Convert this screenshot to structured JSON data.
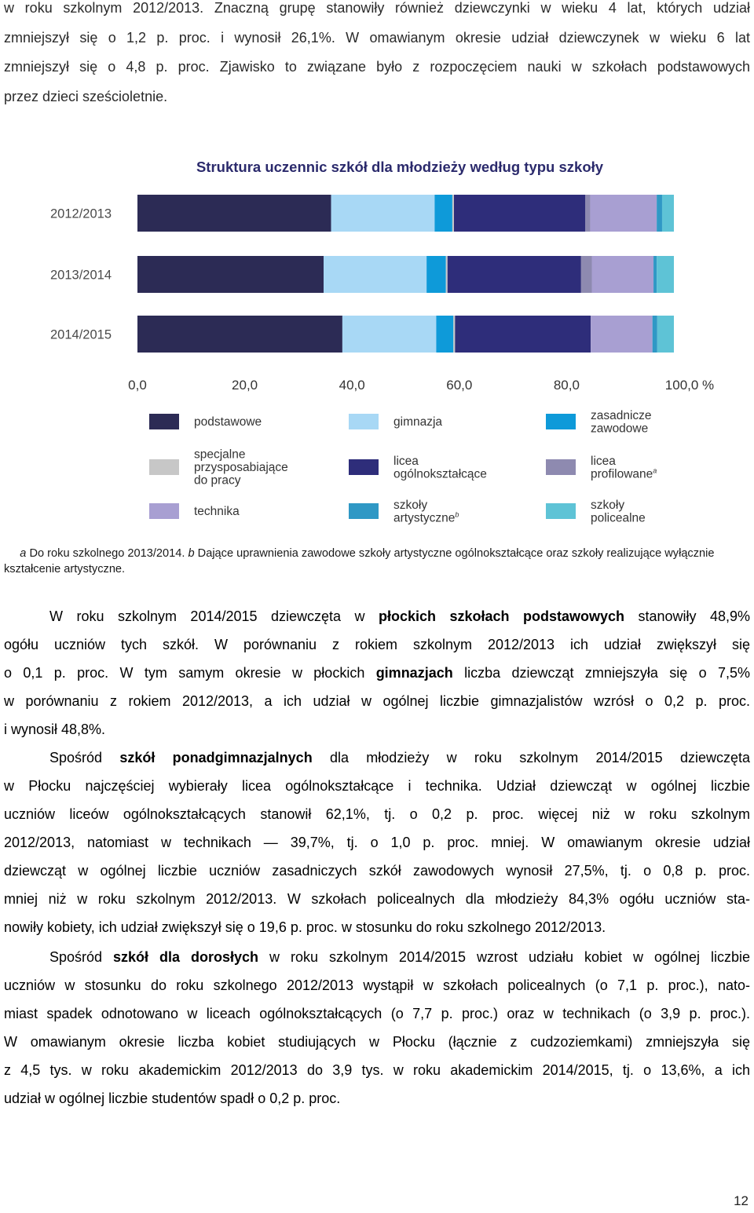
{
  "intro_lines": [
    "w roku szkolnym 2012/2013. Znaczną grupę stanowiły również dziewczynki w wieku 4 lat, których udział",
    "zmniejszył się o 1,2 p. proc. i wynosił 26,1%. W omawianym okresie udział dziewczynek w wieku 6 lat",
    "zmniejszył się o 4,8 p. proc. Zjawisko to związane było z rozpoczęciem nauki w szkołach podstawowych",
    "przez dzieci sześcioletnie."
  ],
  "chart_data": {
    "type": "bar",
    "orientation": "horizontal",
    "stacked": true,
    "title": "Struktura uczennic szkół dla młodzieży według typu szkoły",
    "categories": [
      "2012/2013",
      "2013/2014",
      "2014/2015"
    ],
    "x_ticks": [
      "0,0",
      "20,0",
      "40,0",
      "60,0",
      "80,0",
      "100,0 %"
    ],
    "xlim": [
      0,
      100
    ],
    "grid": false,
    "legend_position": "bottom",
    "series": [
      {
        "name": "podstawowe",
        "color": "#2c2b55",
        "values": [
          36.1,
          34.7,
          38.2
        ]
      },
      {
        "name": "gimnazja",
        "color": "#a8d8f5",
        "values": [
          19.3,
          19.2,
          17.5
        ]
      },
      {
        "name": "zasadnicze zawodowe",
        "color": "#0e9ad9",
        "values": [
          3.3,
          3.6,
          3.2
        ]
      },
      {
        "name": "specjalne przysposabiające do pracy",
        "color": "#c7c7c7",
        "values": [
          0.3,
          0.3,
          0.3
        ]
      },
      {
        "name": "licea ogólnokształcące",
        "color": "#2e2d7a",
        "values": [
          24.5,
          24.9,
          25.3
        ]
      },
      {
        "name": "licea profilowane",
        "prefix": "licea",
        "suffix": "profilowane",
        "marker": "a",
        "color": "#8e8ab0",
        "values": [
          0.9,
          2.0,
          0.0
        ]
      },
      {
        "name": "technika",
        "color": "#a89fd2",
        "values": [
          12.4,
          11.5,
          11.5
        ]
      },
      {
        "name": "szkoły artystyczne",
        "prefix": "szkoły",
        "suffix": "artystyczne",
        "marker": "b",
        "color": "#2f98c5",
        "values": [
          1.0,
          0.6,
          0.9
        ]
      },
      {
        "name": "szkoły policealne",
        "color": "#5ec3d6",
        "values": [
          2.2,
          3.2,
          3.1
        ]
      }
    ],
    "legend_labels": [
      [
        "podstawowe"
      ],
      [
        "gimnazja"
      ],
      [
        "zasadnicze",
        "zawodowe"
      ],
      [
        "specjalne",
        "przysposabiające",
        "do pracy"
      ],
      [
        "licea",
        "ogólnokształcące"
      ],
      [
        "licea",
        "profilowane"
      ],
      [
        "technika"
      ],
      [
        "szkoły",
        "artystyczne"
      ],
      [
        "szkoły",
        "policealne"
      ]
    ]
  },
  "footnote": {
    "a_marker": "a",
    "a_text": " Do roku szkolnego 2013/2014. ",
    "b_marker": "b",
    "b_text": " Dające uprawnienia zawodowe szkoły artystyczne ogólnokształcące oraz szkoły realizujące wyłącznie kształcenie artystyczne."
  },
  "para1": {
    "l1a": "W roku szkolnym 2014/2015 dziewczęta w ",
    "l1b": "płockich szkołach podstawowych",
    "l1c": " stanowiły 48,9%",
    "l2": "ogółu uczniów tych szkół. W porównaniu z rokiem szkolnym 2012/2013 ich udział zwiększył się",
    "l3a": "o 0,1 p. proc. W tym samym okresie w płockich ",
    "l3b": "gimnazjach",
    "l3c": " liczba dziewcząt zmniejszyła się o 7,5%",
    "l4": "w porównaniu z rokiem 2012/2013, a ich udział w ogólnej liczbie gimnazjalistów wzrósł o 0,2 p. proc.",
    "l5": "i wynosił 48,8%."
  },
  "para2": {
    "l1a": "Spośród ",
    "l1b": "szkół ponadgimnazjalnych",
    "l1c": " dla młodzieży w roku szkolnym 2014/2015 dziewczęta",
    "l2": "w Płocku najczęściej wybierały licea ogólnokształcące i technika. Udział dziewcząt w ogólnej liczbie",
    "l3": "uczniów liceów ogólnokształcących stanowił 62,1%, tj. o 0,2 p. proc. więcej niż w roku szkolnym",
    "l4": "2012/2013, natomiast w technikach — 39,7%, tj. o 1,0 p. proc. mniej. W omawianym okresie udział",
    "l5": "dziewcząt w ogólnej liczbie uczniów zasadniczych szkół zawodowych wynosił 27,5%, tj. o 0,8 p. proc.",
    "l6": "mniej niż w roku szkolnym 2012/2013. W szkołach policealnych dla młodzieży 84,3% ogółu uczniów sta-",
    "l7": "nowiły kobiety, ich udział zwiększył się o 19,6 p. proc. w stosunku do roku szkolnego 2012/2013."
  },
  "para3": {
    "l1a": "Spośród ",
    "l1b": "szkół dla dorosłych",
    "l1c": " w roku szkolnym 2014/2015 wzrost udziału kobiet w ogólnej liczbie",
    "l2": "uczniów w stosunku do roku szkolnego 2012/2013 wystąpił w szkołach policealnych (o 7,1 p. proc.), nato-",
    "l3": "miast spadek odnotowano w liceach ogólnokształcących (o 7,7 p. proc.) oraz w technikach (o 3,9 p. proc.).",
    "l4": "W omawianym okresie liczba kobiet studiujących w Płocku (łącznie z cudzoziemkami) zmniejszyła się",
    "l5": "z 4,5 tys. w roku akademickim 2012/2013 do 3,9 tys. w roku akademickim 2014/2015, tj. o 13,6%, a ich",
    "l6": "udział w ogólnej liczbie studentów spadł o 0,2 p. proc."
  },
  "page_number": "12"
}
